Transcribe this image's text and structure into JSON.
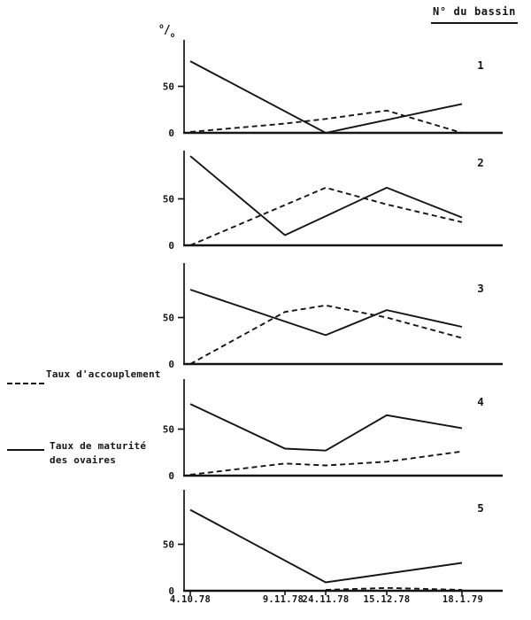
{
  "header": {
    "title": "N° du bassin"
  },
  "y_axis": {
    "unit_sup": "o",
    "unit_slash": "/",
    "unit_sub": "o",
    "tick_labels": [
      "50",
      "0"
    ]
  },
  "legend": {
    "items": [
      {
        "style": "dashed",
        "label": "Taux d'accouplement"
      },
      {
        "style": "solid",
        "label": "Taux de maturité",
        "label2": "des ovaires"
      }
    ]
  },
  "x_axis": {
    "labels": [
      "4.10.78",
      "9.11.78",
      "24.11.78",
      "15.12.78",
      "18.1.79"
    ]
  },
  "chart_data": {
    "type": "line",
    "title": "N° du bassin",
    "ylabel": "%",
    "ylim": [
      0,
      100
    ],
    "y_ticks": [
      0,
      50
    ],
    "grid": false,
    "categories": [
      "4.10.78",
      "9.11.78",
      "24.11.78",
      "15.12.78",
      "18.1.79"
    ],
    "series_legend": [
      {
        "name": "Taux d'accouplement",
        "style": "dashed"
      },
      {
        "name": "Taux de maturité des ovaires",
        "style": "solid"
      }
    ],
    "charts": [
      {
        "basin": "1",
        "solid_points": [
          [
            0,
            77
          ],
          [
            2,
            0
          ],
          [
            4,
            31
          ]
        ],
        "dashed_points": [
          [
            0,
            1
          ],
          [
            1,
            10
          ],
          [
            2,
            15
          ],
          [
            3,
            24
          ],
          [
            4,
            0
          ]
        ]
      },
      {
        "basin": "2",
        "solid_points": [
          [
            0,
            96
          ],
          [
            1,
            11
          ],
          [
            3,
            62
          ],
          [
            4,
            30
          ]
        ],
        "dashed_points": [
          [
            0,
            0
          ],
          [
            2,
            62
          ],
          [
            3,
            44
          ],
          [
            4,
            25
          ]
        ]
      },
      {
        "basin": "3",
        "solid_points": [
          [
            0,
            80
          ],
          [
            2,
            31
          ],
          [
            3,
            58
          ],
          [
            4,
            40
          ]
        ],
        "dashed_points": [
          [
            0,
            0
          ],
          [
            1,
            56
          ],
          [
            2,
            63
          ],
          [
            3,
            50
          ],
          [
            4,
            28
          ]
        ]
      },
      {
        "basin": "4",
        "solid_points": [
          [
            0,
            77
          ],
          [
            1,
            29
          ],
          [
            2,
            27
          ],
          [
            3,
            65
          ],
          [
            4,
            51
          ]
        ],
        "dashed_points": [
          [
            0,
            1
          ],
          [
            1,
            13
          ],
          [
            2,
            11
          ],
          [
            3,
            15
          ],
          [
            4,
            26
          ]
        ]
      },
      {
        "basin": "5",
        "solid_points": [
          [
            0,
            87
          ],
          [
            2,
            9
          ],
          [
            4,
            30
          ]
        ],
        "dashed_points": [
          [
            2,
            1
          ],
          [
            3,
            3
          ],
          [
            4,
            1
          ]
        ]
      }
    ]
  },
  "colors": {
    "ink": "#151515",
    "background": "#ffffff"
  }
}
